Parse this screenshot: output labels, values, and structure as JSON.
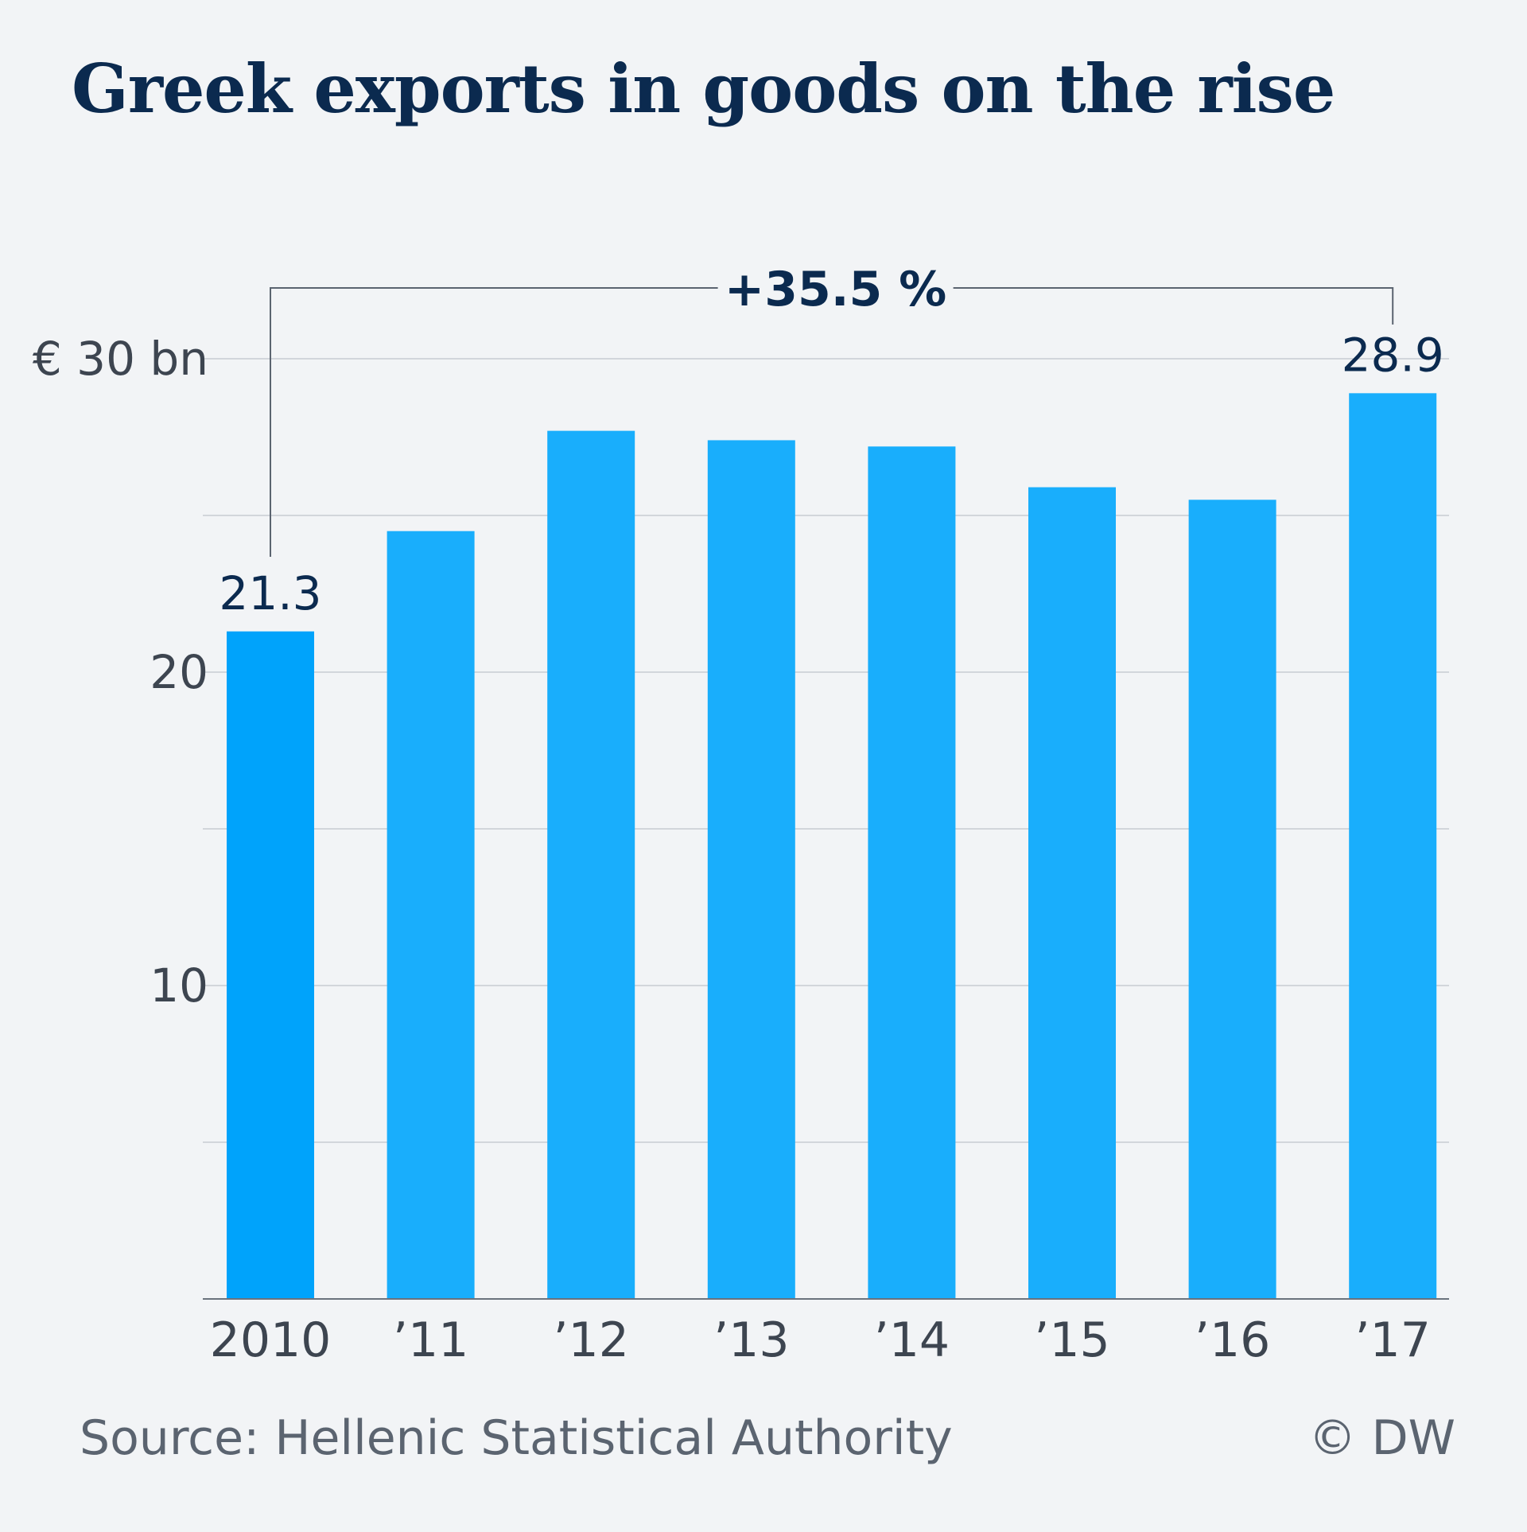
{
  "colors": {
    "background": "#f2f4f6",
    "title": "#0b2a4f",
    "bar": "#19aefc",
    "bar_highlight": "#00a3fb",
    "grid": "#c7ccd2",
    "axis_text": "#3d4550",
    "label_text": "#0b2a4f",
    "bracket": "#5b6470"
  },
  "header": {
    "title": "Greek exports in goods on the rise"
  },
  "footer": {
    "source": "Source: Hellenic Statistical Authority",
    "credit": "© DW"
  },
  "chart_data": {
    "type": "bar",
    "title": "Greek exports in goods on the rise",
    "categories": [
      "2010",
      "’11",
      "’12",
      "’13",
      "’14",
      "’15",
      "’16",
      "’17"
    ],
    "values": [
      21.3,
      24.5,
      27.7,
      27.4,
      27.2,
      25.9,
      25.5,
      28.9
    ],
    "data_labels": {
      "2010": "21.3",
      "’17": "28.9"
    },
    "ylim": [
      0,
      30
    ],
    "yticks": [
      {
        "value": 30,
        "label": "€ 30 bn"
      },
      {
        "value": 20,
        "label": "20"
      },
      {
        "value": 10,
        "label": "10"
      }
    ],
    "gridlines": [
      5,
      10,
      15,
      20,
      25,
      30
    ],
    "grid": true,
    "xlabel": "",
    "ylabel": "",
    "annotation": {
      "text": "+35.5 %",
      "from": "2010",
      "to": "’17"
    }
  }
}
